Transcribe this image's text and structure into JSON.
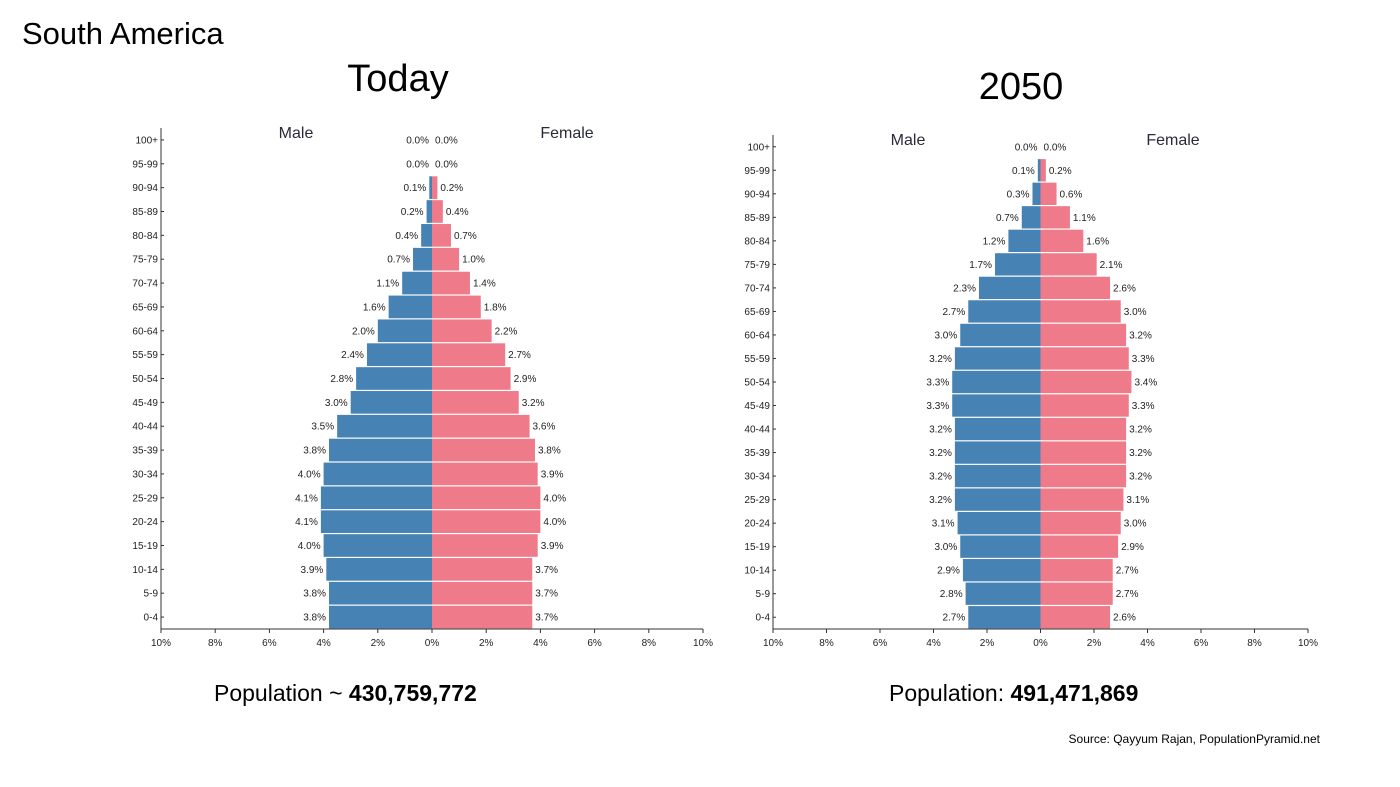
{
  "slide": {
    "title": "South America",
    "source": "Source: Qayyum Rajan, PopulationPyramid.net"
  },
  "colors": {
    "male": "#4682b4",
    "female": "#ef7b8a"
  },
  "panels": [
    {
      "heading": "Today",
      "population_label": "Population ~ ",
      "population_value": "430,759,772"
    },
    {
      "heading": "2050",
      "population_label": "Population: ",
      "population_value": "491,471,869"
    }
  ],
  "chart_data": [
    {
      "type": "bar",
      "title": "Today",
      "categories": [
        "100+",
        "95-99",
        "90-94",
        "85-89",
        "80-84",
        "75-79",
        "70-74",
        "65-69",
        "60-64",
        "55-59",
        "50-54",
        "45-49",
        "40-44",
        "35-39",
        "30-34",
        "25-29",
        "20-24",
        "15-19",
        "10-14",
        "5-9",
        "0-4"
      ],
      "series": [
        {
          "name": "Male",
          "values": [
            0.0,
            0.0,
            0.1,
            0.2,
            0.4,
            0.7,
            1.1,
            1.6,
            2.0,
            2.4,
            2.8,
            3.0,
            3.5,
            3.8,
            4.0,
            4.1,
            4.1,
            4.0,
            3.9,
            3.8,
            3.8
          ],
          "labels": [
            "0.0%",
            "0.0%",
            "0.1%",
            "0.2%",
            "0.4%",
            "0.7%",
            "1.1%",
            "1.6%",
            "2.0%",
            "2.4%",
            "2.8%",
            "3.0%",
            "3.5%",
            "3.8%",
            "4.0%",
            "4.1%",
            "4.1%",
            "4.0%",
            "3.9%",
            "3.8%",
            "3.8%"
          ]
        },
        {
          "name": "Female",
          "values": [
            0.0,
            0.0,
            0.2,
            0.4,
            0.7,
            1.0,
            1.4,
            1.8,
            2.2,
            2.7,
            2.9,
            3.2,
            3.6,
            3.8,
            3.9,
            4.0,
            4.0,
            3.9,
            3.7,
            3.7,
            3.7
          ],
          "labels": [
            "0.0%",
            "0.0%",
            "0.2%",
            "0.4%",
            "0.7%",
            "1.0%",
            "1.4%",
            "1.8%",
            "2.2%",
            "2.7%",
            "2.9%",
            "3.2%",
            "3.6%",
            "3.8%",
            "3.9%",
            "4.0%",
            "4.0%",
            "3.9%",
            "3.7%",
            "3.7%",
            "3.7%"
          ]
        }
      ],
      "x_ticks": [
        "10%",
        "8%",
        "6%",
        "4%",
        "2%",
        "0%",
        "2%",
        "4%",
        "6%",
        "8%",
        "10%"
      ],
      "xlim": [
        -10,
        10
      ],
      "legend": "top",
      "grid": false
    },
    {
      "type": "bar",
      "title": "2050",
      "categories": [
        "100+",
        "95-99",
        "90-94",
        "85-89",
        "80-84",
        "75-79",
        "70-74",
        "65-69",
        "60-64",
        "55-59",
        "50-54",
        "45-49",
        "40-44",
        "35-39",
        "30-34",
        "25-29",
        "20-24",
        "15-19",
        "10-14",
        "5-9",
        "0-4"
      ],
      "series": [
        {
          "name": "Male",
          "values": [
            0.0,
            0.1,
            0.3,
            0.7,
            1.2,
            1.7,
            2.3,
            2.7,
            3.0,
            3.2,
            3.3,
            3.3,
            3.2,
            3.2,
            3.2,
            3.2,
            3.1,
            3.0,
            2.9,
            2.8,
            2.7
          ],
          "labels": [
            "0.0%",
            "0.1%",
            "0.3%",
            "0.7%",
            "1.2%",
            "1.7%",
            "2.3%",
            "2.7%",
            "3.0%",
            "3.2%",
            "3.3%",
            "3.3%",
            "3.2%",
            "3.2%",
            "3.2%",
            "3.2%",
            "3.1%",
            "3.0%",
            "2.9%",
            "2.8%",
            "2.7%"
          ]
        },
        {
          "name": "Female",
          "values": [
            0.0,
            0.2,
            0.6,
            1.1,
            1.6,
            2.1,
            2.6,
            3.0,
            3.2,
            3.3,
            3.4,
            3.3,
            3.2,
            3.2,
            3.2,
            3.1,
            3.0,
            2.9,
            2.7,
            2.7,
            2.6
          ],
          "labels": [
            "0.0%",
            "0.2%",
            "0.6%",
            "1.1%",
            "1.6%",
            "2.1%",
            "2.6%",
            "3.0%",
            "3.2%",
            "3.3%",
            "3.4%",
            "3.3%",
            "3.2%",
            "3.2%",
            "3.2%",
            "3.1%",
            "3.0%",
            "2.9%",
            "2.7%",
            "2.7%",
            "2.6%"
          ]
        }
      ],
      "x_ticks": [
        "10%",
        "8%",
        "6%",
        "4%",
        "2%",
        "0%",
        "2%",
        "4%",
        "6%",
        "8%",
        "10%"
      ],
      "xlim": [
        -10,
        10
      ],
      "legend": "top",
      "grid": false
    }
  ]
}
